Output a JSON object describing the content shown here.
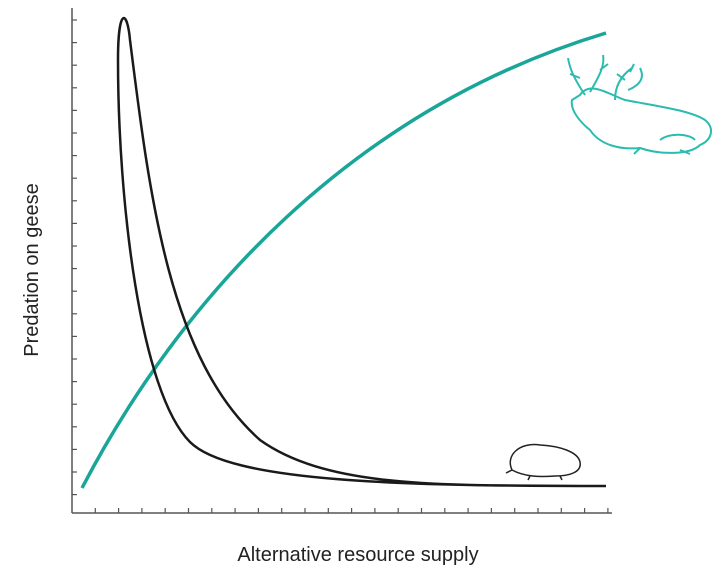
{
  "x_axis_label": "Alternative resource supply",
  "y_axis_label": "Predation on geese"
}
